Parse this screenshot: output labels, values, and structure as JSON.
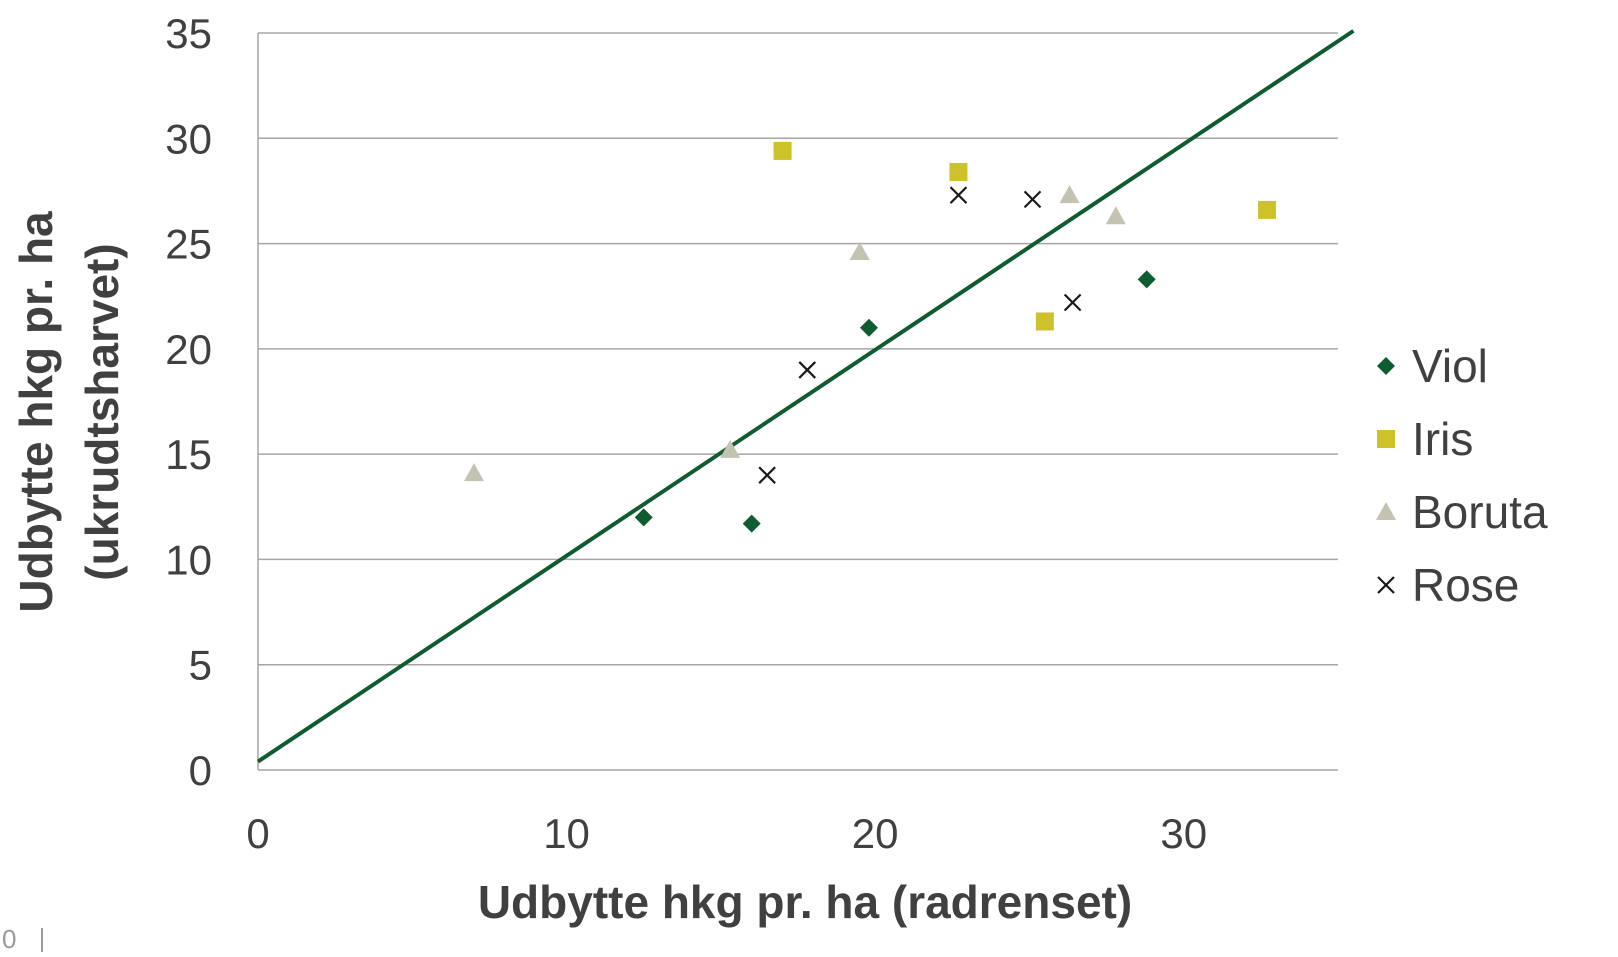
{
  "page_number": "0",
  "chart_data": {
    "type": "scatter",
    "title": "",
    "xlabel": "Udbytte hkg pr. ha (radrenset)",
    "ylabel_line1": "Udbytte hkg pr. ha",
    "ylabel_line2": "(ukrudtsharvet)",
    "xlim": [
      0,
      35
    ],
    "ylim": [
      0,
      35
    ],
    "x_ticks": [
      0,
      10,
      20,
      30
    ],
    "y_ticks": [
      0,
      5,
      10,
      15,
      20,
      25,
      30,
      35
    ],
    "grid": "horizontal",
    "legend_position": "right",
    "series": [
      {
        "name": "Viol",
        "marker": "diamond",
        "color": "#0e5c2f",
        "points": [
          [
            12.5,
            12.0
          ],
          [
            16.0,
            11.7
          ],
          [
            19.8,
            21.0
          ],
          [
            28.8,
            23.3
          ]
        ]
      },
      {
        "name": "Iris",
        "marker": "square",
        "color": "#cdc22a",
        "points": [
          [
            17.0,
            29.4
          ],
          [
            22.7,
            28.4
          ],
          [
            25.5,
            21.3
          ],
          [
            32.7,
            26.6
          ]
        ]
      },
      {
        "name": "Boruta",
        "marker": "triangle",
        "color": "#c3c3b0",
        "points": [
          [
            7.0,
            14.1
          ],
          [
            15.3,
            15.2
          ],
          [
            19.5,
            24.6
          ],
          [
            26.3,
            27.3
          ],
          [
            27.8,
            26.3
          ]
        ]
      },
      {
        "name": "Rose",
        "marker": "x",
        "color": "#1a1a1a",
        "points": [
          [
            16.5,
            14.0
          ],
          [
            17.8,
            19.0
          ],
          [
            22.7,
            27.3
          ],
          [
            25.1,
            27.1
          ],
          [
            26.4,
            22.2
          ]
        ]
      }
    ],
    "trendline": {
      "color": "#0e5c2f",
      "from": [
        0,
        0.4
      ],
      "to": [
        35.5,
        35.1
      ]
    }
  }
}
